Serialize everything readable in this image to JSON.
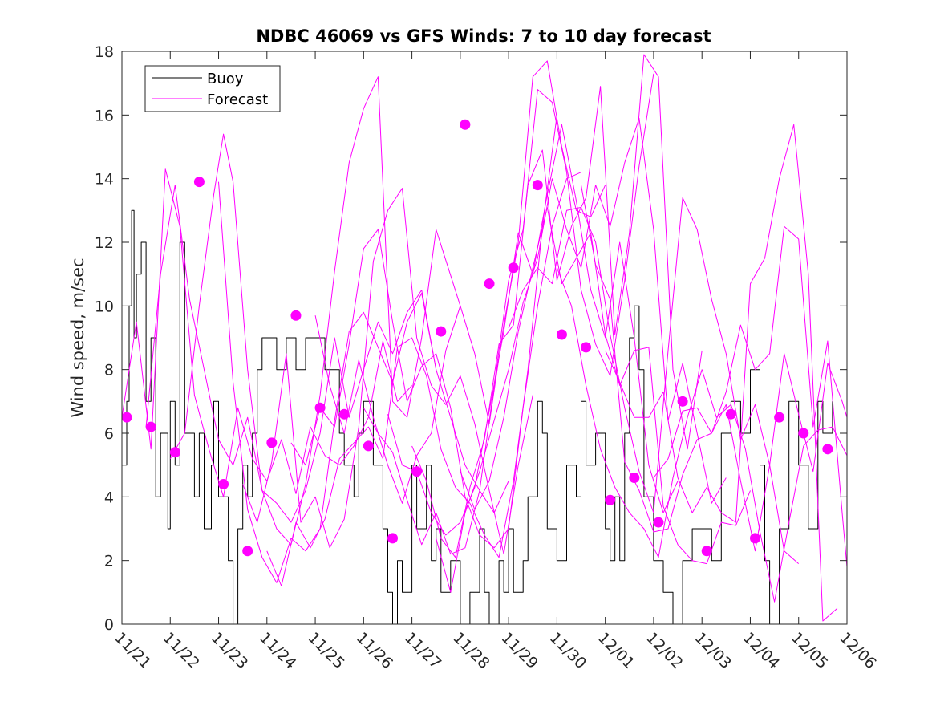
{
  "chart_data": {
    "type": "line",
    "title": "NDBC 46069 vs GFS Winds: 7 to 10 day forecast",
    "xlabel": "",
    "ylabel": "Wind speed, m/sec",
    "xlim": [
      0,
      15
    ],
    "ylim": [
      0,
      18
    ],
    "x_tick_labels": [
      "11/21",
      "11/22",
      "11/23",
      "11/24",
      "11/25",
      "11/26",
      "11/27",
      "11/28",
      "11/29",
      "11/30",
      "12/01",
      "12/02",
      "12/03",
      "12/04",
      "12/05",
      "12/06"
    ],
    "y_ticks": [
      0,
      2,
      4,
      6,
      8,
      10,
      12,
      14,
      16,
      18
    ],
    "legend": {
      "position": "top-left",
      "entries": [
        "Buoy",
        "Forecast"
      ]
    },
    "colors": {
      "buoy": "#000000",
      "forecast": "#ff00ff",
      "axis": "#262626"
    },
    "series": [
      {
        "name": "Buoy",
        "x": [
          0.0,
          0.1,
          0.15,
          0.2,
          0.25,
          0.3,
          0.4,
          0.5,
          0.6,
          0.7,
          0.8,
          0.95,
          1.0,
          1.1,
          1.2,
          1.3,
          1.5,
          1.6,
          1.7,
          1.85,
          1.9,
          2.0,
          2.2,
          2.3,
          2.4,
          2.5,
          2.6,
          2.7,
          2.8,
          2.9,
          3.0,
          3.2,
          3.4,
          3.6,
          3.8,
          4.0,
          4.2,
          4.5,
          4.6,
          4.8,
          4.9,
          5.0,
          5.2,
          5.4,
          5.5,
          5.6,
          5.7,
          5.8,
          6.0,
          6.1,
          6.3,
          6.4,
          6.5,
          6.6,
          6.8,
          7.0,
          7.2,
          7.4,
          7.5,
          7.6,
          7.8,
          7.9,
          8.0,
          8.1,
          8.3,
          8.4,
          8.6,
          8.7,
          8.8,
          9.0,
          9.2,
          9.4,
          9.5,
          9.6,
          9.8,
          10.0,
          10.1,
          10.2,
          10.3,
          10.4,
          10.5,
          10.6,
          10.7,
          10.8,
          11.0,
          11.2,
          11.4,
          11.6,
          11.8,
          12.0,
          12.2,
          12.4,
          12.6,
          12.8,
          13.0,
          13.2,
          13.3,
          13.4,
          13.6,
          13.8,
          14.0,
          14.2,
          14.4,
          14.5,
          14.7
        ],
        "values": [
          5,
          7,
          10,
          13,
          9,
          11,
          12,
          7,
          9,
          4,
          6,
          3,
          7,
          5,
          12,
          6,
          4,
          6,
          3,
          5,
          7,
          4,
          2,
          0,
          3,
          5,
          4,
          6,
          8,
          9,
          9,
          8,
          9,
          8,
          9,
          9,
          8,
          6,
          5,
          4,
          6,
          7,
          5,
          3,
          1,
          0,
          2,
          1,
          5,
          3,
          5,
          2,
          3,
          1,
          2,
          0,
          1,
          3,
          1,
          0,
          2,
          1,
          3,
          1,
          2,
          4,
          7,
          6,
          3,
          2,
          5,
          4,
          7,
          5,
          6,
          3,
          2,
          4,
          2,
          6,
          9,
          10,
          8,
          4,
          2,
          1,
          0,
          2,
          3,
          3,
          2,
          6,
          7,
          6,
          8,
          5,
          2,
          0,
          3,
          7,
          5,
          3,
          7,
          6,
          7
        ]
      },
      {
        "name": "Forecast 1",
        "x": [
          0.0,
          0.3,
          0.6,
          0.9,
          1.2,
          1.5,
          1.8,
          2.1,
          2.4,
          2.7,
          3.0,
          3.3,
          3.6,
          3.9,
          4.2,
          4.5,
          4.8,
          5.1,
          5.4,
          5.7,
          6.0
        ],
        "values": [
          6.5,
          9.5,
          5.5,
          14.3,
          12.5,
          7.2,
          5.5,
          4.0,
          6.8,
          5.2,
          4.5,
          5.8,
          4.1,
          6.2,
          5.3,
          5.0,
          5.6,
          6.5,
          8.9,
          7.0,
          7.5
        ]
      },
      {
        "name": "Forecast 2",
        "x": [
          0.5,
          0.8,
          1.1,
          1.4,
          1.7,
          2.0,
          2.3,
          2.6,
          2.9,
          3.2,
          3.5,
          3.8,
          4.1,
          4.4,
          4.7,
          5.0,
          5.3,
          5.6,
          5.9,
          6.2,
          6.5
        ],
        "values": [
          6.2,
          11.0,
          13.8,
          10.2,
          8.0,
          5.8,
          5.0,
          6.5,
          4.2,
          3.8,
          3.2,
          4.2,
          6.0,
          9.0,
          6.5,
          8.0,
          9.5,
          8.5,
          9.8,
          10.5,
          8.0
        ]
      },
      {
        "name": "Forecast 3",
        "x": [
          1.0,
          1.3,
          1.6,
          1.9,
          2.1,
          2.3,
          2.6,
          2.9,
          3.2,
          3.5,
          3.8,
          4.1,
          4.4,
          4.7,
          5.0,
          5.3,
          5.6,
          5.9,
          6.2,
          6.5,
          7.0
        ],
        "values": [
          5.2,
          6.0,
          10.0,
          13.5,
          15.4,
          13.9,
          8.0,
          4.2,
          3.0,
          2.5,
          4.4,
          7.2,
          11.1,
          14.5,
          16.2,
          17.2,
          7.0,
          6.5,
          9.0,
          12.4,
          10.0
        ]
      },
      {
        "name": "Forecast 4",
        "x": [
          2.0,
          2.3,
          2.6,
          2.9,
          3.2,
          3.5,
          3.8,
          4.1,
          4.4,
          4.7,
          5.0,
          5.3,
          5.6,
          5.9,
          6.2,
          6.5,
          6.8,
          7.1,
          7.4,
          7.7,
          8.0
        ],
        "values": [
          13.9,
          7.6,
          3.6,
          2.1,
          1.3,
          2.7,
          2.3,
          3.0,
          6.4,
          9.2,
          9.8,
          8.7,
          7.6,
          9.5,
          10.4,
          8.0,
          6.5,
          5.0,
          4.2,
          3.5,
          4.5
        ]
      },
      {
        "name": "Forecast 5",
        "x": [
          2.5,
          2.8,
          3.1,
          3.4,
          3.7,
          4.0,
          4.3,
          4.6,
          4.9,
          5.2,
          5.5,
          5.8,
          6.1,
          6.4,
          6.7,
          7.0,
          7.3,
          7.6,
          7.9,
          8.2,
          8.5
        ],
        "values": [
          4.4,
          3.2,
          5.1,
          8.5,
          3.2,
          4.0,
          2.4,
          3.3,
          6.2,
          11.4,
          13.0,
          13.7,
          9.0,
          7.5,
          6.9,
          7.8,
          6.3,
          4.2,
          2.2,
          5.0,
          7.2
        ]
      },
      {
        "name": "Forecast 6",
        "x": [
          3.0,
          3.3,
          3.6,
          3.9,
          4.2,
          4.5,
          4.8,
          5.1,
          5.4,
          5.7,
          6.0,
          6.3,
          6.6,
          6.9,
          7.2,
          7.5,
          7.8,
          8.1,
          8.4,
          8.7,
          9.0
        ],
        "values": [
          2.3,
          1.2,
          3.2,
          2.4,
          3.3,
          5.2,
          5.7,
          6.2,
          5.2,
          8.7,
          9.0,
          7.8,
          5.5,
          4.3,
          3.8,
          2.8,
          2.1,
          4.5,
          8.0,
          12.5,
          16.0
        ]
      },
      {
        "name": "Forecast 7",
        "x": [
          3.5,
          3.8,
          4.1,
          4.4,
          4.7,
          5.0,
          5.3,
          5.6,
          5.9,
          6.2,
          6.5,
          6.8,
          7.1,
          7.4,
          7.7,
          8.0,
          8.3,
          8.6,
          8.9,
          9.2,
          9.5
        ],
        "values": [
          5.7,
          5.0,
          6.8,
          6.2,
          8.8,
          11.8,
          12.4,
          9.5,
          7.0,
          8.1,
          8.5,
          6.8,
          4.0,
          2.8,
          2.4,
          3.0,
          6.8,
          10.0,
          12.5,
          14.0,
          14.2
        ]
      },
      {
        "name": "Forecast 8",
        "x": [
          4.0,
          4.3,
          4.6,
          4.9,
          5.2,
          5.5,
          5.8,
          6.1,
          6.4,
          6.7,
          7.0,
          7.3,
          7.6,
          7.9,
          8.2,
          8.5,
          8.8,
          9.1,
          9.4,
          9.7,
          10.0
        ],
        "values": [
          9.7,
          7.5,
          6.0,
          8.3,
          6.5,
          5.0,
          3.8,
          5.3,
          6.0,
          8.6,
          10.0,
          8.5,
          6.3,
          9.4,
          12.0,
          17.2,
          17.7,
          15.0,
          13.0,
          12.8,
          13.8
        ]
      },
      {
        "name": "Forecast 9",
        "x": [
          5.0,
          5.3,
          5.6,
          5.9,
          6.2,
          6.5,
          6.8,
          7.1,
          7.4,
          7.7,
          8.0,
          8.3,
          8.6,
          8.9,
          9.2,
          9.5,
          9.8,
          10.1,
          10.4,
          10.7,
          11.0
        ],
        "values": [
          6.8,
          6.0,
          5.4,
          3.9,
          2.5,
          3.5,
          2.2,
          2.4,
          4.2,
          7.5,
          10.8,
          12.4,
          16.8,
          16.4,
          14.2,
          10.5,
          8.8,
          7.8,
          10.8,
          14.4,
          17.3
        ]
      },
      {
        "name": "Forecast 10",
        "x": [
          5.5,
          5.8,
          6.1,
          6.4,
          6.7,
          7.0,
          7.3,
          7.6,
          7.9,
          8.2,
          8.5,
          8.8,
          9.1,
          9.4,
          9.7,
          10.0,
          10.3,
          10.6,
          10.9,
          11.2,
          11.5
        ],
        "values": [
          6.6,
          5.0,
          4.8,
          3.5,
          2.8,
          3.2,
          4.3,
          6.7,
          9.2,
          12.3,
          11.0,
          13.5,
          15.7,
          13.3,
          10.5,
          9.0,
          12.0,
          9.0,
          5.0,
          3.5,
          4.5
        ]
      },
      {
        "name": "Forecast 11",
        "x": [
          6.0,
          6.3,
          6.6,
          6.9,
          7.2,
          7.5,
          7.8,
          8.1,
          8.4,
          8.7,
          9.0,
          9.3,
          9.6,
          9.9,
          10.2,
          10.5,
          10.8,
          11.1,
          11.4,
          11.7,
          12.0
        ],
        "values": [
          5.6,
          4.5,
          2.7,
          2.1,
          4.3,
          5.8,
          8.8,
          9.4,
          13.8,
          14.9,
          10.8,
          12.5,
          13.4,
          16.9,
          9.1,
          12.3,
          17.9,
          17.2,
          8.0,
          5.5,
          8.6
        ]
      },
      {
        "name": "Forecast 12",
        "x": [
          6.5,
          6.8,
          7.1,
          7.4,
          7.7,
          8.0,
          8.3,
          8.6,
          8.9,
          9.2,
          9.5,
          9.8,
          10.1,
          10.4,
          10.7,
          11.0,
          11.3,
          11.6,
          11.9,
          12.2,
          12.5
        ],
        "values": [
          2.7,
          1.0,
          3.5,
          4.8,
          6.4,
          8.0,
          10.1,
          11.5,
          14.0,
          12.4,
          11.2,
          13.8,
          12.5,
          14.5,
          15.9,
          12.4,
          6.4,
          8.2,
          6.0,
          3.8,
          4.6
        ]
      },
      {
        "name": "Forecast 13",
        "x": [
          7.0,
          7.3,
          7.6,
          7.9,
          8.2,
          8.5,
          8.8,
          9.1,
          9.4,
          9.7,
          10.0,
          10.3,
          10.6,
          10.9,
          11.2,
          11.5,
          11.8,
          12.1,
          12.4,
          12.7,
          13.0
        ],
        "values": [
          4.8,
          3.6,
          4.5,
          6.5,
          9.2,
          11.2,
          13.1,
          10.7,
          11.5,
          12.3,
          9.1,
          7.5,
          8.6,
          8.7,
          3.7,
          2.5,
          2.0,
          1.9,
          3.2,
          3.1,
          4.2
        ]
      },
      {
        "name": "Forecast 14",
        "x": [
          8.0,
          8.3,
          8.6,
          8.9,
          9.2,
          9.5,
          9.8,
          10.1,
          10.4,
          10.7,
          11.0,
          11.3,
          11.6,
          11.9,
          12.2,
          12.5,
          12.8,
          13.1,
          13.4,
          13.7,
          14.0
        ],
        "values": [
          9.3,
          10.5,
          11.2,
          10.7,
          13.0,
          13.1,
          12.0,
          9.1,
          6.8,
          4.8,
          3.5,
          8.6,
          13.4,
          12.4,
          10.2,
          8.5,
          5.8,
          6.9,
          5.0,
          2.3,
          1.9
        ]
      },
      {
        "name": "Forecast 15",
        "x": [
          9.0,
          9.3,
          9.6,
          9.9,
          10.2,
          10.5,
          10.8,
          11.1,
          11.4,
          11.7,
          12.0,
          12.3,
          12.6,
          12.9,
          13.2,
          13.5,
          13.8,
          14.1,
          14.4,
          14.7,
          15.0
        ],
        "values": [
          11.2,
          10.0,
          7.5,
          5.5,
          4.3,
          3.5,
          3.0,
          2.1,
          4.6,
          6.5,
          8.0,
          6.5,
          6.9,
          5.5,
          2.9,
          0.7,
          3.2,
          5.6,
          6.1,
          6.2,
          5.3
        ]
      },
      {
        "name": "Forecast 16",
        "x": [
          9.5,
          9.8,
          10.1,
          10.4,
          10.7,
          11.0,
          11.3,
          11.6,
          11.9,
          12.2,
          12.5,
          12.8,
          13.1,
          13.4,
          13.7,
          14.0,
          14.3,
          14.6,
          14.9,
          15.0
        ],
        "values": [
          13.8,
          11.3,
          10.2,
          5.1,
          4.2,
          2.9,
          3.0,
          4.7,
          5.8,
          6.0,
          7.3,
          9.4,
          8.0,
          8.5,
          12.5,
          12.1,
          6.2,
          8.9,
          3.5,
          1.8
        ]
      },
      {
        "name": "Forecast 17",
        "x": [
          10.0,
          10.3,
          10.6,
          10.9,
          11.2,
          11.5,
          11.8,
          12.1,
          12.4,
          12.7,
          13.0,
          13.3,
          13.6,
          13.9,
          14.2,
          14.5,
          14.8
        ],
        "values": [
          8.6,
          7.6,
          6.5,
          6.5,
          7.3,
          4.6,
          3.5,
          4.3,
          3.5,
          3.2,
          10.7,
          11.5,
          14.0,
          15.7,
          11.0,
          0.1,
          0.5
        ]
      },
      {
        "name": "Forecast 18",
        "x": [
          11.0,
          11.3,
          11.6,
          11.9,
          12.2,
          12.5,
          12.8,
          13.1,
          13.4,
          13.7,
          14.0,
          14.3,
          14.6,
          14.9,
          15.0
        ],
        "values": [
          4.6,
          5.2,
          6.7,
          6.8,
          6.0,
          6.9,
          4.5,
          2.3,
          5.0,
          8.5,
          6.6,
          4.8,
          8.2,
          7.0,
          6.5
        ]
      }
    ],
    "forecast_markers": {
      "x": [
        0.1,
        0.6,
        1.1,
        1.6,
        2.1,
        2.6,
        3.1,
        3.6,
        4.1,
        4.6,
        5.1,
        5.6,
        6.1,
        6.6,
        7.1,
        7.6,
        8.1,
        8.6,
        9.1,
        9.6,
        10.1,
        10.6,
        11.1,
        11.6,
        12.1,
        12.6,
        13.1,
        13.6,
        14.1,
        14.6
      ],
      "values": [
        6.5,
        6.2,
        5.4,
        13.9,
        4.4,
        2.3,
        5.7,
        9.7,
        6.8,
        6.6,
        5.6,
        2.7,
        4.8,
        9.2,
        15.7,
        10.7,
        11.2,
        13.8,
        9.1,
        8.7,
        3.9,
        4.6,
        3.2,
        7.0,
        2.3,
        6.6,
        2.7,
        6.5,
        6.0,
        5.5
      ]
    }
  }
}
